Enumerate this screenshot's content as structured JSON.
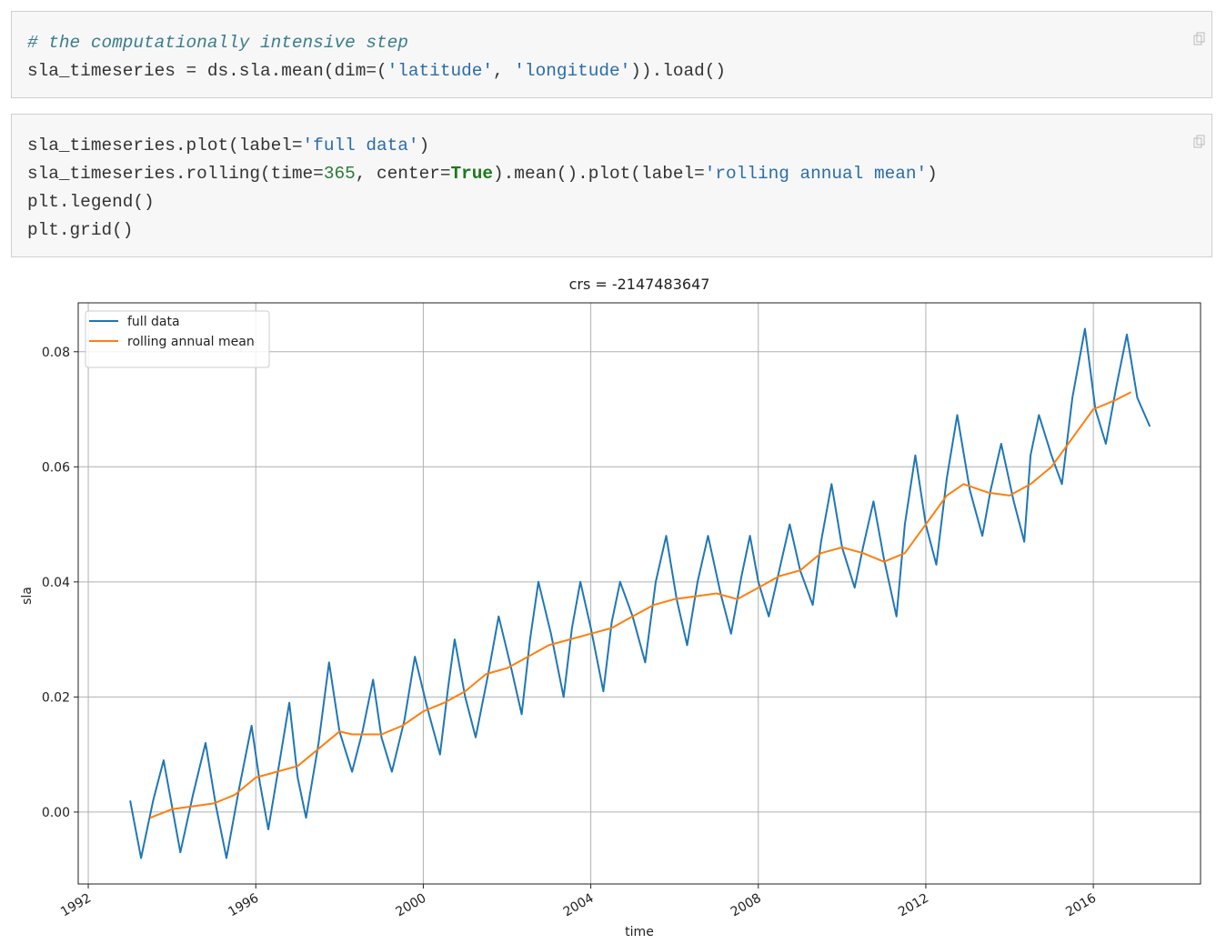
{
  "cells": [
    {
      "lines": [
        "# the computationally intensive step",
        "sla_timeseries = ds.sla.mean(dim=('latitude', 'longitude')).load()"
      ]
    },
    {
      "lines": [
        "sla_timeseries.plot(label='full data')",
        "sla_timeseries.rolling(time=365, center=True).mean().plot(label='rolling annual mean')",
        "plt.legend()",
        "plt.grid()"
      ]
    }
  ],
  "chart_data": {
    "type": "line",
    "title": "crs = -2147483647",
    "x_label": "time",
    "y_label": "sla",
    "xlim": [
      1991.76,
      2018.56
    ],
    "xticks": [
      1992,
      1996,
      2000,
      2004,
      2008,
      2012,
      2016
    ],
    "ylim": [
      -0.0125,
      0.0885
    ],
    "yticks": [
      {
        "value": 0,
        "label": "0.00"
      },
      0.02,
      0.04,
      0.06,
      0.08
    ],
    "grid": true,
    "legend": "upper-left",
    "series": [
      {
        "name": "full data",
        "color": "#1f77b4",
        "x": [
          1993.0,
          1993.26,
          1993.55,
          1993.8,
          1994.0,
          1994.2,
          1994.5,
          1994.8,
          1995.05,
          1995.3,
          1995.6,
          1995.9,
          1996.1,
          1996.3,
          1996.55,
          1996.8,
          1997.0,
          1997.2,
          1997.5,
          1997.75,
          1998.0,
          1998.3,
          1998.55,
          1998.8,
          1999.0,
          1999.25,
          1999.55,
          1999.8,
          2000.1,
          2000.4,
          2000.6,
          2000.75,
          2001.0,
          2001.25,
          2001.55,
          2001.8,
          2002.1,
          2002.35,
          2002.55,
          2002.75,
          2003.05,
          2003.35,
          2003.55,
          2003.75,
          2004.0,
          2004.3,
          2004.5,
          2004.7,
          2005.0,
          2005.3,
          2005.55,
          2005.8,
          2006.05,
          2006.3,
          2006.55,
          2006.8,
          2007.1,
          2007.35,
          2007.6,
          2007.8,
          2008.0,
          2008.25,
          2008.5,
          2008.75,
          2009.0,
          2009.3,
          2009.5,
          2009.75,
          2010.0,
          2010.3,
          2010.5,
          2010.75,
          2011.0,
          2011.3,
          2011.5,
          2011.75,
          2012.0,
          2012.25,
          2012.5,
          2012.75,
          2013.05,
          2013.35,
          2013.55,
          2013.8,
          2014.1,
          2014.35,
          2014.5,
          2014.7,
          2015.0,
          2015.25,
          2015.5,
          2015.8,
          2016.05,
          2016.3,
          2016.55,
          2016.8,
          2017.05,
          2017.35
        ],
        "values": [
          0.002,
          -0.008,
          0.002,
          0.009,
          0.001,
          -0.007,
          0.003,
          0.012,
          0.001,
          -0.008,
          0.004,
          0.015,
          0.005,
          -0.003,
          0.008,
          0.019,
          0.006,
          -0.001,
          0.012,
          0.026,
          0.014,
          0.007,
          0.014,
          0.023,
          0.013,
          0.007,
          0.016,
          0.027,
          0.018,
          0.01,
          0.022,
          0.03,
          0.02,
          0.013,
          0.024,
          0.034,
          0.025,
          0.017,
          0.03,
          0.04,
          0.031,
          0.02,
          0.032,
          0.04,
          0.032,
          0.021,
          0.033,
          0.04,
          0.034,
          0.026,
          0.04,
          0.048,
          0.037,
          0.029,
          0.04,
          0.048,
          0.038,
          0.031,
          0.041,
          0.048,
          0.04,
          0.034,
          0.042,
          0.05,
          0.042,
          0.036,
          0.047,
          0.057,
          0.046,
          0.039,
          0.046,
          0.054,
          0.044,
          0.034,
          0.05,
          0.062,
          0.05,
          0.043,
          0.058,
          0.069,
          0.056,
          0.048,
          0.056,
          0.064,
          0.054,
          0.047,
          0.062,
          0.069,
          0.062,
          0.057,
          0.072,
          0.084,
          0.07,
          0.064,
          0.074,
          0.083,
          0.072,
          0.067
        ]
      },
      {
        "name": "rolling annual mean",
        "color": "#ff7f0e",
        "x": [
          1993.48,
          1994.0,
          1995.0,
          1995.5,
          1996.0,
          1996.5,
          1997.0,
          1997.5,
          1998.0,
          1998.3,
          1999.0,
          1999.5,
          2000.0,
          2000.5,
          2001.0,
          2001.5,
          2002.0,
          2002.5,
          2003.0,
          2003.5,
          2004.0,
          2004.5,
          2005.0,
          2005.5,
          2006.0,
          2006.5,
          2007.0,
          2007.5,
          2008.0,
          2008.5,
          2009.0,
          2009.5,
          2010.0,
          2010.5,
          2011.0,
          2011.5,
          2012.0,
          2012.5,
          2012.9,
          2013.5,
          2014.0,
          2014.5,
          2015.0,
          2015.5,
          2016.0,
          2016.5,
          2016.9
        ],
        "values": [
          -0.001,
          0.0005,
          0.0015,
          0.003,
          0.006,
          0.007,
          0.008,
          0.011,
          0.014,
          0.0135,
          0.0135,
          0.015,
          0.0175,
          0.019,
          0.021,
          0.024,
          0.025,
          0.027,
          0.029,
          0.03,
          0.031,
          0.032,
          0.034,
          0.036,
          0.037,
          0.0375,
          0.038,
          0.037,
          0.039,
          0.041,
          0.042,
          0.045,
          0.046,
          0.045,
          0.0435,
          0.045,
          0.05,
          0.055,
          0.057,
          0.0555,
          0.055,
          0.057,
          0.06,
          0.065,
          0.07,
          0.0715,
          0.073
        ]
      }
    ]
  }
}
